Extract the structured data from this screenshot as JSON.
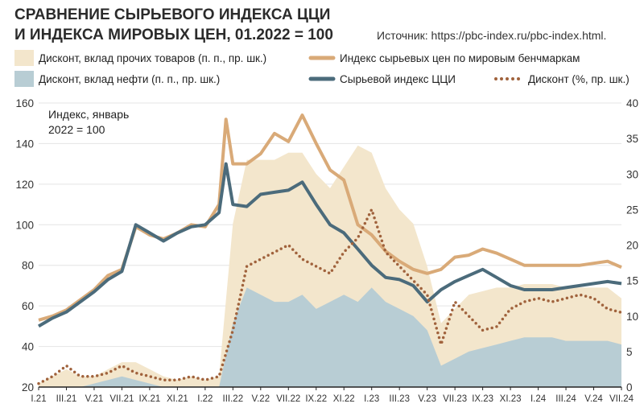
{
  "title_line1": "СРАВНЕНИЕ СЫРЬЕВОГО ИНДЕКСА ЦЦИ",
  "title_line2": "И ИНДЕКСА МИРОВЫХ ЦЕН, 01.2022 = 100",
  "source": "Источник: https://pbc-index.ru/pbc-index.html.",
  "annotation_line1": "Индекс, январь",
  "annotation_line2": "2022 = 100",
  "colors": {
    "other_goods_area": "#f3e6cc",
    "oil_area": "#b8cdd4",
    "world_index_line": "#d9aa78",
    "czi_index_line": "#4b6b7b",
    "discount_dots": "#a0623c",
    "grid": "#e4e4e4"
  },
  "chart_data": {
    "type": "line",
    "x_ticks": [
      "I.21",
      "III.21",
      "V.21",
      "VII.21",
      "IX.21",
      "XI.21",
      "I.22",
      "III.22",
      "V.22",
      "VII.22",
      "IX.22",
      "XI.22",
      "I.23",
      "III.23",
      "V.23",
      "VII.23",
      "IX.23",
      "XI.23",
      "I.24",
      "III.24",
      "V.24",
      "VII.24"
    ],
    "x_range_months": [
      "I.21",
      "VII.24"
    ],
    "y_left": {
      "range": [
        20,
        160
      ],
      "ticks": [
        20,
        40,
        60,
        80,
        100,
        120,
        140,
        160
      ]
    },
    "y_right": {
      "range": [
        0,
        40
      ],
      "ticks": [
        0,
        5,
        10,
        15,
        20,
        25,
        30,
        35,
        40
      ]
    },
    "grid": true,
    "series": [
      {
        "name": "Дисконт, вклад прочих товаров (п. п., пр. шк.)",
        "kind": "area",
        "axis": "right",
        "x": [
          0,
          1,
          2,
          3,
          4,
          5,
          6,
          7,
          8,
          9,
          10,
          11,
          12,
          13,
          14,
          15,
          16,
          17,
          18,
          19,
          20,
          21,
          22,
          23,
          24,
          25,
          26,
          27,
          28,
          29,
          30,
          31,
          32,
          33,
          34,
          35,
          36,
          37,
          38,
          39,
          40,
          41,
          42
        ],
        "values": [
          0.5,
          1.5,
          2.5,
          1.5,
          1,
          1.5,
          2,
          2.5,
          2,
          1.5,
          1,
          1.5,
          1,
          1.5,
          14,
          18,
          19,
          20,
          21,
          20,
          19,
          16,
          18,
          22,
          19,
          16,
          14,
          13,
          9,
          6,
          7,
          8,
          8,
          8,
          7.5,
          7.5,
          7.5,
          7.5,
          7.5,
          7.5,
          7.5,
          7.5,
          6.5
        ]
      },
      {
        "name": "Дисконт, вклад нефти (п. п., пр. шк.)",
        "kind": "area",
        "axis": "right",
        "x": [
          0,
          1,
          2,
          3,
          4,
          5,
          6,
          7,
          8,
          9,
          10,
          11,
          12,
          13,
          14,
          15,
          16,
          17,
          18,
          19,
          20,
          21,
          22,
          23,
          24,
          25,
          26,
          27,
          28,
          29,
          30,
          31,
          32,
          33,
          34,
          35,
          36,
          37,
          38,
          39,
          40,
          41,
          42
        ],
        "values": [
          0,
          0,
          0,
          0,
          0.5,
          1,
          1.5,
          1,
          0.5,
          0,
          0,
          0,
          0,
          0,
          9,
          14,
          13,
          12,
          12,
          13,
          11,
          12,
          13,
          12,
          14,
          12,
          11,
          10,
          8,
          3,
          4,
          5,
          5.5,
          6,
          6.5,
          7,
          7,
          7,
          6.5,
          6.5,
          6.5,
          6.5,
          6
        ]
      },
      {
        "name": "Индекс сырьевых цен по мировым бенчмаркам",
        "kind": "line",
        "axis": "left",
        "x": [
          0,
          1,
          2,
          3,
          4,
          5,
          6,
          7,
          8,
          9,
          10,
          11,
          12,
          13,
          13.5,
          14,
          15,
          16,
          17,
          18,
          19,
          20,
          21,
          22,
          23,
          24,
          25,
          26,
          27,
          28,
          29,
          30,
          31,
          32,
          33,
          34,
          35,
          36,
          37,
          38,
          39,
          40,
          41,
          42
        ],
        "values": [
          53,
          55,
          58,
          63,
          68,
          75,
          78,
          99,
          95,
          93,
          96,
          100,
          99,
          110,
          152,
          130,
          130,
          135,
          145,
          141,
          154,
          140,
          127,
          122,
          100,
          95,
          87,
          82,
          78,
          76,
          78,
          84,
          85,
          88,
          86,
          83,
          80,
          80,
          80,
          80,
          80,
          81,
          82,
          79
        ]
      },
      {
        "name": "Сырьевой индекс ЦЦИ",
        "kind": "line",
        "axis": "left",
        "x": [
          0,
          1,
          2,
          3,
          4,
          5,
          6,
          7,
          8,
          9,
          10,
          11,
          12,
          13,
          13.5,
          14,
          15,
          16,
          17,
          18,
          19,
          20,
          21,
          22,
          23,
          24,
          25,
          26,
          27,
          28,
          29,
          30,
          31,
          32,
          33,
          34,
          35,
          36,
          37,
          38,
          39,
          40,
          41,
          42
        ],
        "values": [
          50,
          54,
          57,
          62,
          67,
          73,
          77,
          100,
          96,
          92,
          96,
          99,
          100,
          106,
          130,
          110,
          109,
          115,
          116,
          117,
          121,
          110,
          100,
          96,
          88,
          80,
          74,
          73,
          70,
          62,
          68,
          72,
          75,
          78,
          74,
          70,
          68,
          68,
          68,
          69,
          70,
          71,
          72,
          71
        ]
      },
      {
        "name": "Дисконт (%, пр. шк.)",
        "kind": "dotted-line",
        "axis": "right",
        "x": [
          0,
          1,
          2,
          3,
          4,
          5,
          6,
          7,
          8,
          9,
          10,
          11,
          12,
          13,
          14,
          15,
          16,
          17,
          18,
          19,
          20,
          21,
          22,
          23,
          24,
          25,
          26,
          27,
          28,
          29,
          30,
          31,
          32,
          33,
          34,
          35,
          36,
          37,
          38,
          39,
          40,
          41,
          42
        ],
        "values": [
          0.5,
          1.5,
          3,
          1.5,
          1.5,
          2,
          3,
          2,
          1.5,
          1,
          1,
          1.5,
          1,
          1.5,
          8,
          17,
          18,
          19,
          20,
          18,
          17,
          16,
          19,
          21,
          25,
          19,
          17,
          15,
          13,
          6,
          12,
          10,
          8,
          8.5,
          11,
          12,
          12.5,
          12,
          12.5,
          13,
          12.5,
          11,
          10.5
        ]
      }
    ]
  },
  "legend": [
    {
      "label": "Дисконт, вклад прочих товаров (п. п., пр. шк.)",
      "swatch": "other_goods_area"
    },
    {
      "label": "Дисконт, вклад нефти (п. п., пр. шк.)",
      "swatch": "oil_area"
    },
    {
      "label": "Индекс сырьевых цен по мировым бенчмаркам",
      "swatch": "world_index_line"
    },
    {
      "label": "Сырьевой индекс ЦЦИ",
      "swatch": "czi_index_line"
    },
    {
      "label": "Дисконт (%, пр. шк.)",
      "swatch": "discount_dots"
    }
  ]
}
